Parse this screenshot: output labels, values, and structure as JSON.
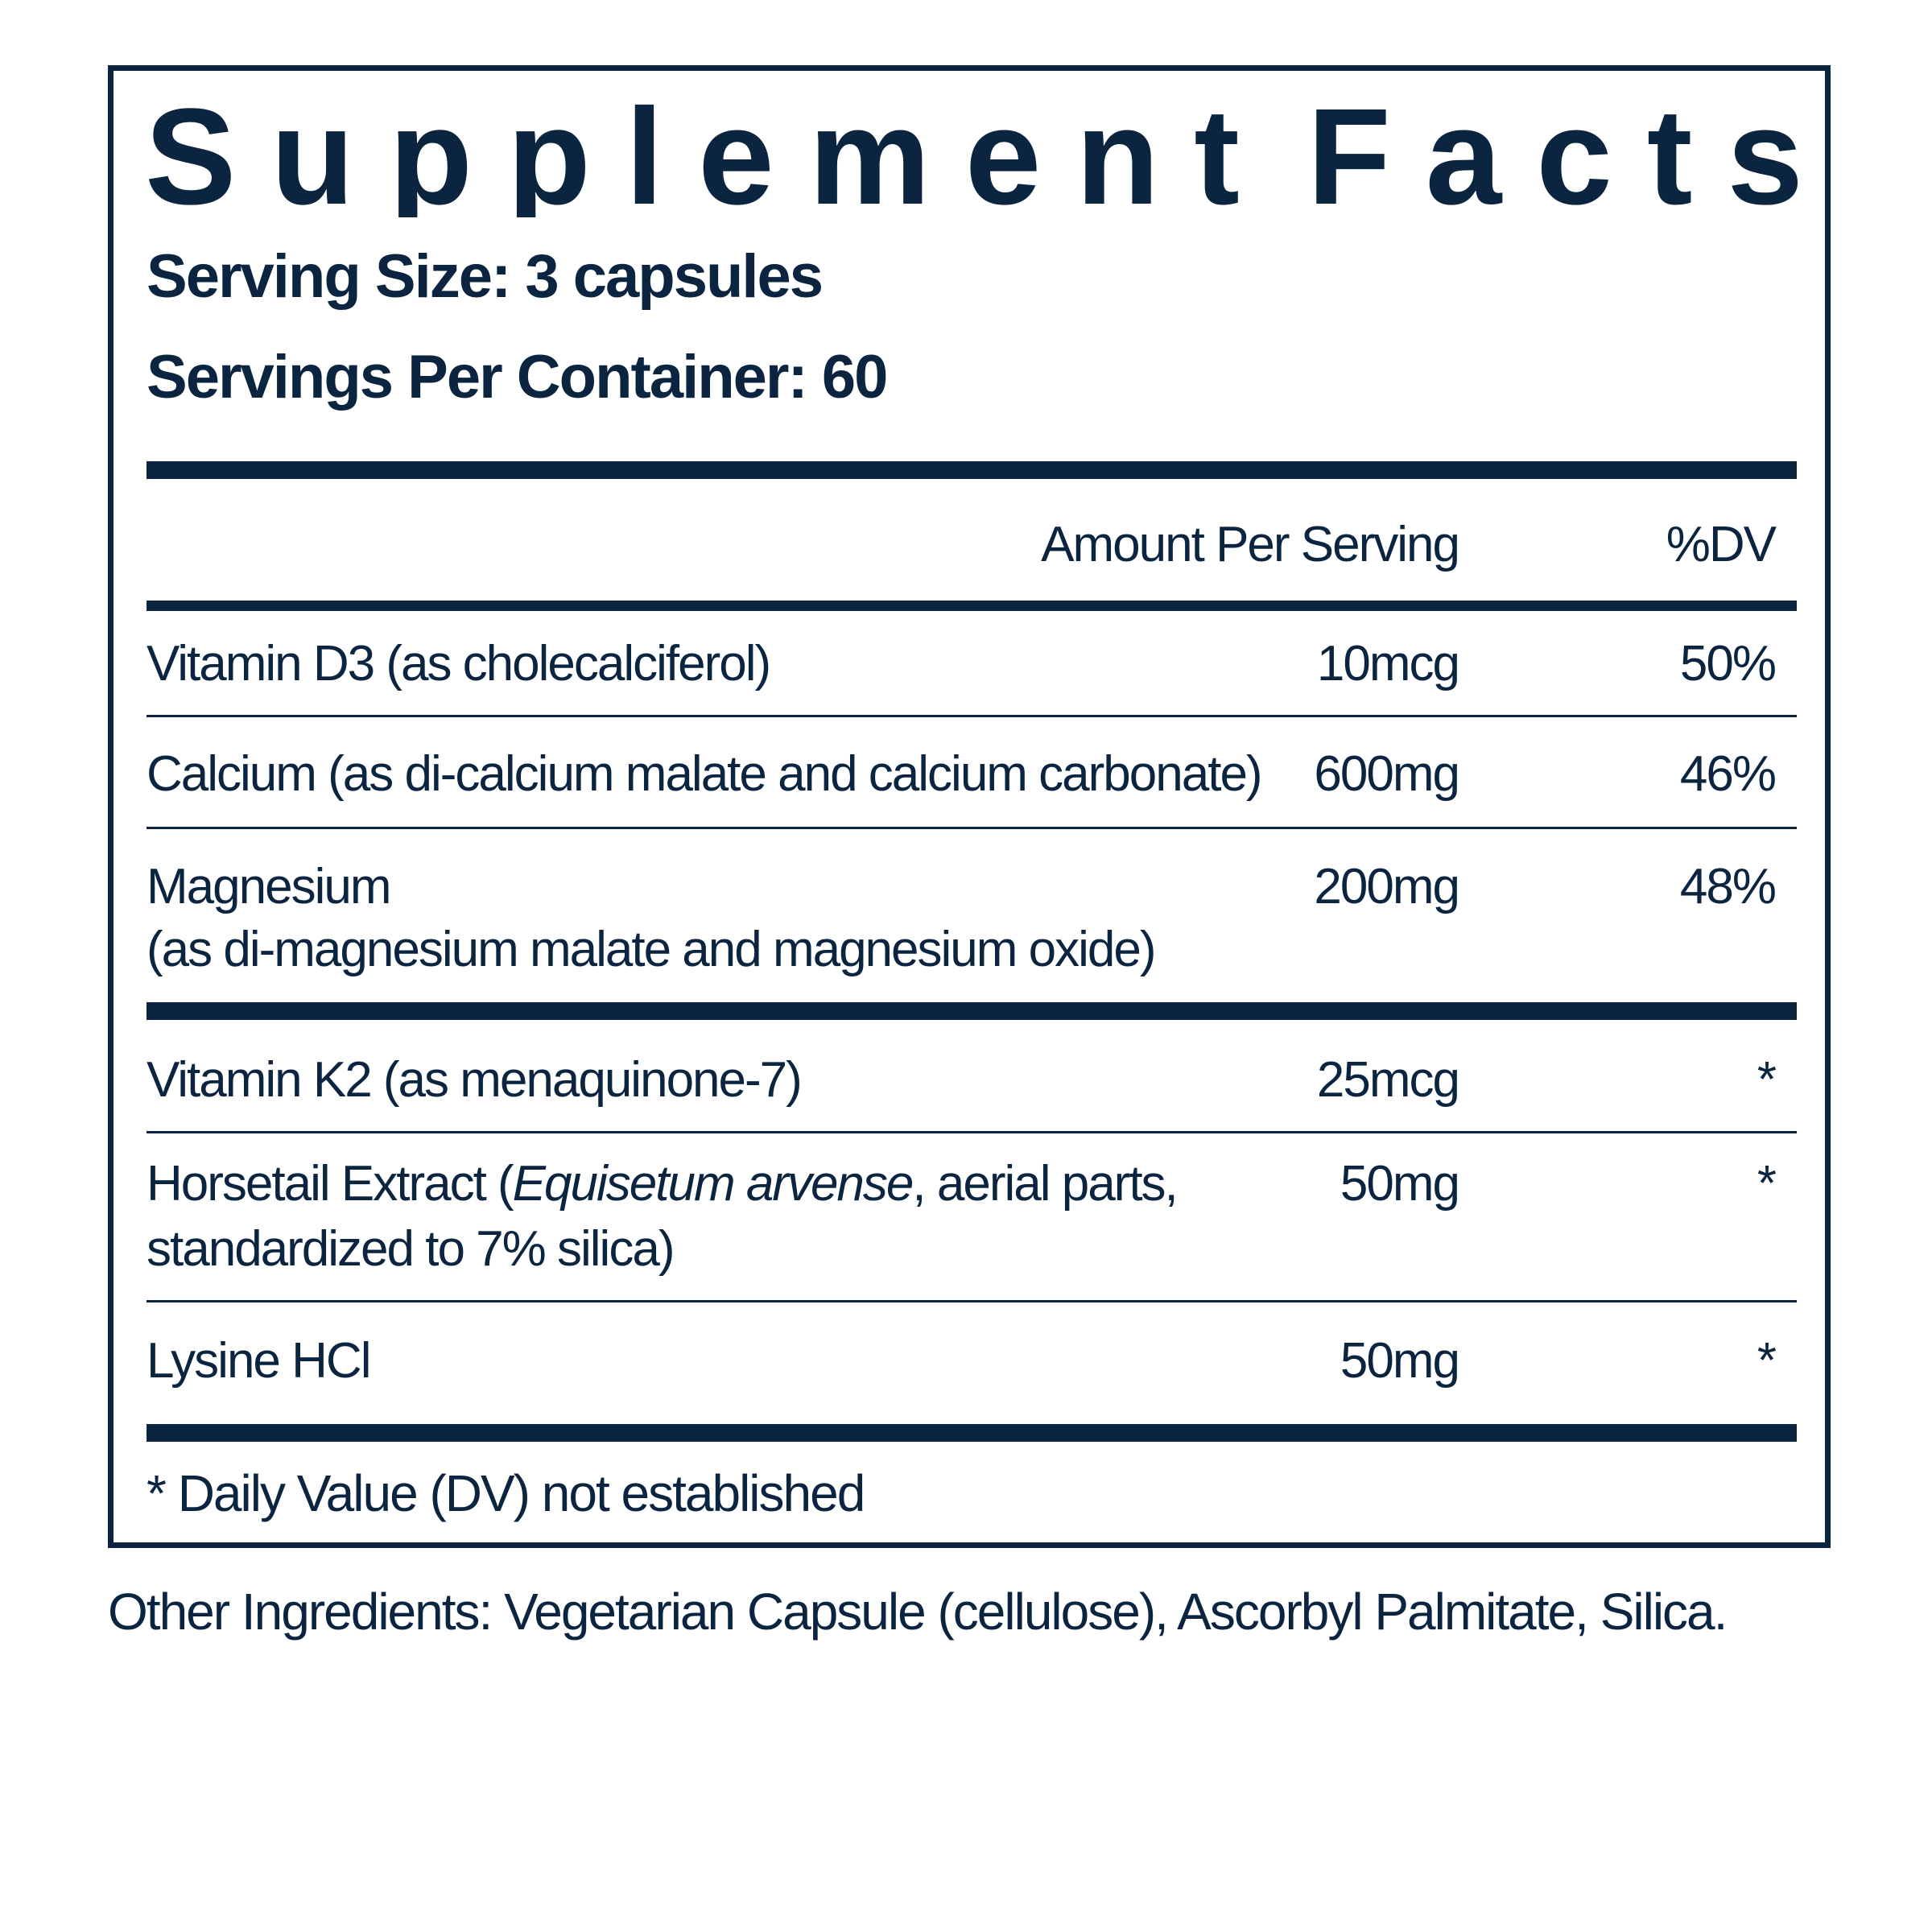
{
  "title_letters": [
    "S",
    "u",
    "p",
    "p",
    "l",
    "e",
    "m",
    "e",
    "n",
    "t",
    " ",
    "F",
    "a",
    "c",
    "t",
    "s"
  ],
  "title": "Supplement Facts",
  "serving_size": "Serving Size: 3 capsules",
  "servings_per_container": "Servings Per Container: 60",
  "headers": {
    "amount": "Amount Per Serving",
    "dv": "%DV"
  },
  "rows": [
    {
      "name": "Vitamin D3 (as cholecalciferol)",
      "amount": "10mcg",
      "dv": "50%"
    },
    {
      "name": "Calcium (as di-calcium malate and calcium carbonate)",
      "amount": "600mg",
      "dv": "46%"
    },
    {
      "name_line1": "Magnesium",
      "name_line2": "(as di-magnesium malate and magnesium oxide)",
      "amount": "200mg",
      "dv": "48%"
    },
    {
      "name": "Vitamin K2 (as menaquinone-7)",
      "amount": "25mcg",
      "dv": "*"
    },
    {
      "name_prefix": "Horsetail Extract (",
      "name_italic": "Equisetum arvense",
      "name_suffix": ", aerial parts,",
      "name_line2": "standardized to 7% silica)",
      "amount": "50mg",
      "dv": "*"
    },
    {
      "name": "Lysine HCl",
      "amount": "50mg",
      "dv": "*"
    }
  ],
  "footnote": "* Daily Value (DV) not established",
  "other_ingredients": "Other Ingredients: Vegetarian Capsule (cellulose), Ascorbyl Palmitate, Silica."
}
